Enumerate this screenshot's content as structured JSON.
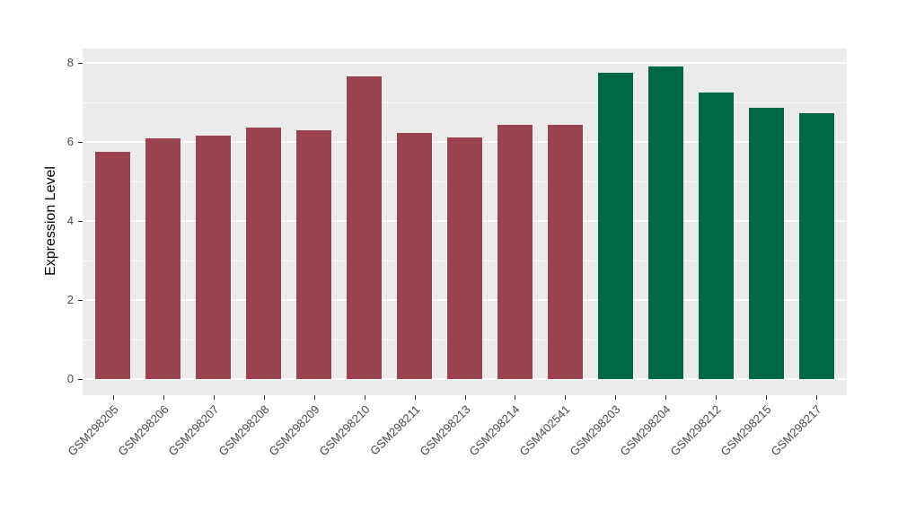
{
  "chart_data": {
    "type": "bar",
    "title": "",
    "xlabel": "",
    "ylabel": "Expression Level",
    "categories": [
      "GSM298205",
      "GSM298206",
      "GSM298207",
      "GSM298208",
      "GSM298209",
      "GSM298210",
      "GSM298211",
      "GSM298213",
      "GSM298214",
      "GSM402541",
      "GSM298203",
      "GSM298204",
      "GSM298212",
      "GSM298215",
      "GSM298217"
    ],
    "values": [
      5.76,
      6.1,
      6.16,
      6.37,
      6.3,
      7.66,
      6.23,
      6.11,
      6.43,
      6.43,
      7.76,
      7.91,
      7.25,
      6.87,
      6.73
    ],
    "bar_groups": [
      "A",
      "A",
      "A",
      "A",
      "A",
      "A",
      "A",
      "A",
      "A",
      "A",
      "B",
      "B",
      "B",
      "B",
      "B"
    ],
    "group_colors": {
      "A": "#9a4350",
      "B": "#006847"
    },
    "yticks": [
      0,
      2,
      4,
      6,
      8
    ],
    "yminor_ticks": [
      1,
      3,
      5,
      7
    ],
    "ylim": [
      0,
      8.36
    ],
    "x_tick_rotation_deg": 45,
    "grid": true,
    "legend": "none",
    "panel_background": "#ebebeb",
    "grid_color": "#ffffff",
    "axis_text_color": "#4a4a4a",
    "tick_mark_color": "#333333"
  }
}
